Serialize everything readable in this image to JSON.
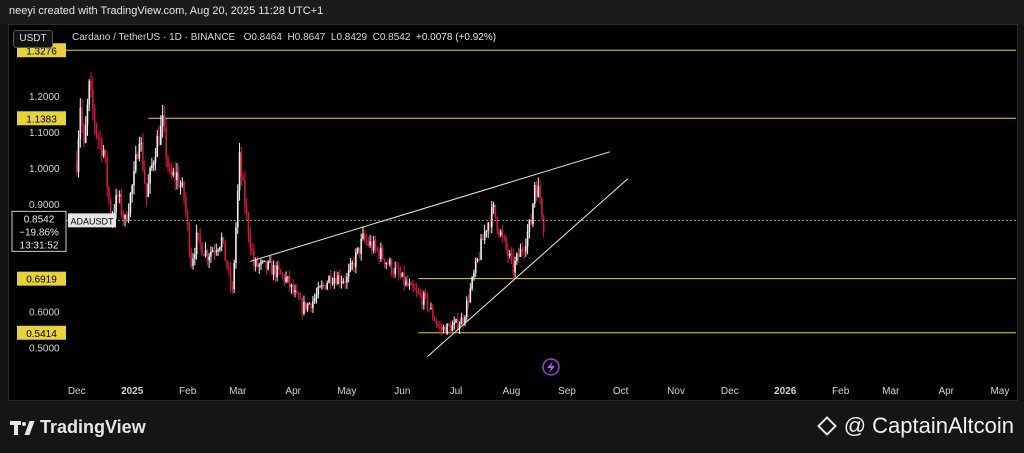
{
  "header": {
    "attribution": "neeyi created with TradingView.com, Aug 20, 2025 11:28 UTC+1"
  },
  "legend": {
    "unit": "USDT",
    "instrument": "Cardano / TetherUS · 1D · BINANCE",
    "open_label": "O",
    "open": "0.8464",
    "high_label": "H",
    "high": "0.8647",
    "low_label": "L",
    "low": "0.8429",
    "close_label": "C",
    "close": "0.8542",
    "change": "+0.0078 (+0.92%)"
  },
  "footer": {
    "brand_left": "TradingView",
    "brand_right": "@ CaptainAltcoin"
  },
  "colors": {
    "up": "#f2f2f2",
    "down": "#d01a3c",
    "level": "#e6d23c",
    "background": "#000000"
  },
  "chart_data": {
    "type": "candlestick",
    "symbol": "ADAUSDT",
    "x_range": [
      "2024-11-25",
      "2026-05-10"
    ],
    "ylim": [
      0.46,
      1.345
    ],
    "x_ticks": [
      "Dec",
      "2025",
      "Feb",
      "Mar",
      "Apr",
      "May",
      "Jun",
      "Jul",
      "Aug",
      "Sep",
      "Oct",
      "Nov",
      "Dec",
      "2026",
      "Feb",
      "Mar",
      "Apr",
      "May"
    ],
    "x_tick_dates": [
      "2024-12-01",
      "2025-01-01",
      "2025-02-01",
      "2025-03-01",
      "2025-04-01",
      "2025-05-01",
      "2025-06-01",
      "2025-07-01",
      "2025-08-01",
      "2025-09-01",
      "2025-10-01",
      "2025-11-01",
      "2025-12-01",
      "2026-01-01",
      "2026-02-01",
      "2026-03-01",
      "2026-04-01",
      "2026-05-01"
    ],
    "bold_ticks": [
      "2025",
      "2026"
    ],
    "y_ticks": [
      "1.2000",
      "1.1000",
      "1.0000",
      "0.9000",
      "0.6000",
      "0.5000"
    ],
    "horizontal_levels": [
      {
        "label": "1.3276",
        "value": 1.3276,
        "start": "2024-11-25"
      },
      {
        "label": "1.1383",
        "value": 1.1383,
        "start": "2025-01-10"
      },
      {
        "label": "0.6919",
        "value": 0.6919,
        "start": "2025-06-10"
      },
      {
        "label": "0.5414",
        "value": 0.5414,
        "start": "2025-06-10"
      }
    ],
    "current_price": {
      "value": "0.8542",
      "change": "−19.86%",
      "countdown": "13:31:52",
      "symbol_label": "ADAUSDT"
    },
    "trendlines": [
      {
        "from": [
          "2025-03-08",
          0.74
        ],
        "to": [
          "2025-09-25",
          1.045
        ]
      },
      {
        "from": [
          "2025-06-15",
          0.475
        ],
        "to": [
          "2025-10-05",
          0.97
        ]
      }
    ],
    "anchors": [
      [
        "2024-12-01",
        1.02
      ],
      [
        "2024-12-03",
        1.18
      ],
      [
        "2024-12-05",
        1.05
      ],
      [
        "2024-12-08",
        1.22
      ],
      [
        "2024-12-12",
        1.1
      ],
      [
        "2024-12-16",
        1.05
      ],
      [
        "2024-12-20",
        0.86
      ],
      [
        "2024-12-24",
        0.92
      ],
      [
        "2024-12-28",
        0.85
      ],
      [
        "2025-01-02",
        0.97
      ],
      [
        "2025-01-05",
        1.1
      ],
      [
        "2025-01-09",
        0.92
      ],
      [
        "2025-01-14",
        1.06
      ],
      [
        "2025-01-18",
        1.12
      ],
      [
        "2025-01-22",
        0.97
      ],
      [
        "2025-01-26",
        0.98
      ],
      [
        "2025-01-30",
        0.92
      ],
      [
        "2025-02-03",
        0.74
      ],
      [
        "2025-02-06",
        0.8
      ],
      [
        "2025-02-12",
        0.76
      ],
      [
        "2025-02-20",
        0.8
      ],
      [
        "2025-02-26",
        0.65
      ],
      [
        "2025-03-02",
        1.02
      ],
      [
        "2025-03-06",
        0.86
      ],
      [
        "2025-03-10",
        0.73
      ],
      [
        "2025-03-20",
        0.72
      ],
      [
        "2025-03-28",
        0.69
      ],
      [
        "2025-04-06",
        0.61
      ],
      [
        "2025-04-12",
        0.63
      ],
      [
        "2025-04-22",
        0.7
      ],
      [
        "2025-05-01",
        0.69
      ],
      [
        "2025-05-10",
        0.8
      ],
      [
        "2025-05-13",
        0.79
      ],
      [
        "2025-05-20",
        0.76
      ],
      [
        "2025-05-30",
        0.7
      ],
      [
        "2025-06-06",
        0.66
      ],
      [
        "2025-06-14",
        0.63
      ],
      [
        "2025-06-22",
        0.55
      ],
      [
        "2025-06-30",
        0.56
      ],
      [
        "2025-07-05",
        0.58
      ],
      [
        "2025-07-12",
        0.72
      ],
      [
        "2025-07-18",
        0.84
      ],
      [
        "2025-07-22",
        0.88
      ],
      [
        "2025-07-27",
        0.8
      ],
      [
        "2025-08-02",
        0.72
      ],
      [
        "2025-08-08",
        0.79
      ],
      [
        "2025-08-12",
        0.85
      ],
      [
        "2025-08-14",
        0.96
      ],
      [
        "2025-08-17",
        0.92
      ],
      [
        "2025-08-19",
        0.8464
      ]
    ]
  }
}
